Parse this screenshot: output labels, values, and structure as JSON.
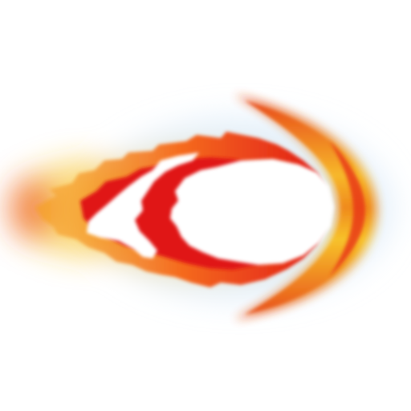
{
  "sprite": {
    "name": "fireball-projectile",
    "colors": {
      "core": "#ffffff",
      "red": "#e01818",
      "orange": "#f56a1c",
      "yellow": "#f7c22a",
      "gold": "#f5b21a",
      "glow_blue": "#cfe6f7"
    }
  }
}
